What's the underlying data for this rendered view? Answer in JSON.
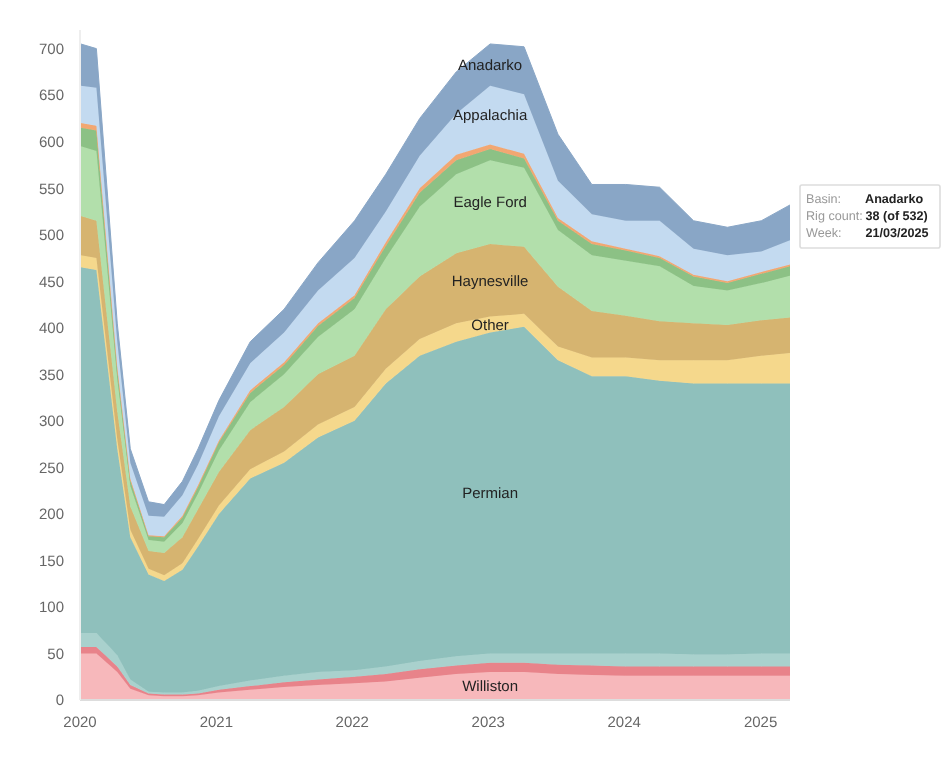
{
  "chart_data": {
    "type": "area",
    "stacked": true,
    "x": [
      "2020-01-03",
      "2020-02-14",
      "2020-04-10",
      "2020-05-15",
      "2020-07-03",
      "2020-08-14",
      "2020-10-02",
      "2020-11-13",
      "2021-01-08",
      "2021-04-02",
      "2021-07-02",
      "2021-10-01",
      "2022-01-07",
      "2022-04-01",
      "2022-07-01",
      "2022-10-07",
      "2023-01-06",
      "2023-04-07",
      "2023-07-07",
      "2023-10-06",
      "2024-01-05",
      "2024-04-05",
      "2024-07-05",
      "2024-10-04",
      "2025-01-03",
      "2025-03-21"
    ],
    "xlim": [
      "2020-01-01",
      "2025-03-21"
    ],
    "xticks": [
      "2020",
      "2021",
      "2022",
      "2023",
      "2024",
      "2025"
    ],
    "ylim": [
      0,
      720
    ],
    "yticks": [
      0,
      50,
      100,
      150,
      200,
      250,
      300,
      350,
      400,
      450,
      500,
      550,
      600,
      650,
      700
    ],
    "series": [
      {
        "name": "Williston",
        "color": "#f7b8bb",
        "values": [
          50,
          50,
          30,
          12,
          5,
          4,
          4,
          5,
          8,
          11,
          14,
          16,
          18,
          20,
          24,
          28,
          30,
          30,
          28,
          27,
          26,
          26,
          26,
          26,
          26,
          26
        ]
      },
      {
        "color": "#e8838a",
        "values": [
          7,
          7,
          6,
          4,
          2,
          2,
          2,
          2,
          3,
          4,
          5,
          6,
          7,
          8,
          9,
          9,
          10,
          10,
          10,
          10,
          10,
          10,
          10,
          10,
          10,
          10
        ]
      },
      {
        "color": "#a9d1cd",
        "values": [
          15,
          15,
          12,
          6,
          2,
          2,
          2,
          3,
          4,
          6,
          7,
          8,
          7,
          8,
          9,
          10,
          10,
          10,
          12,
          13,
          14,
          14,
          13,
          13,
          14,
          14
        ]
      },
      {
        "name": "Permian",
        "color": "#8fc0bc",
        "values": [
          393,
          390,
          222,
          153,
          126,
          120,
          132,
          155,
          185,
          217,
          229,
          252,
          268,
          304,
          328,
          338,
          345,
          351,
          315,
          298,
          298,
          293,
          291,
          291,
          290,
          290
        ]
      },
      {
        "name": "Other",
        "color": "#f5d88c",
        "values": [
          13,
          13,
          10,
          8,
          6,
          6,
          7,
          8,
          9,
          10,
          12,
          14,
          15,
          16,
          18,
          20,
          17,
          14,
          15,
          20,
          20,
          22,
          25,
          25,
          30,
          33
        ]
      },
      {
        "name": "Haynesville",
        "color": "#d6b470",
        "values": [
          42,
          40,
          30,
          25,
          19,
          24,
          28,
          32,
          36,
          42,
          48,
          54,
          55,
          64,
          67,
          75,
          78,
          72,
          64,
          50,
          45,
          42,
          40,
          38,
          38,
          38
        ]
      },
      {
        "name": "Eagle Ford",
        "color": "#b2dfab",
        "values": [
          75,
          75,
          35,
          22,
          12,
          12,
          15,
          17,
          23,
          30,
          35,
          40,
          50,
          55,
          75,
          85,
          90,
          85,
          61,
          60,
          59,
          59,
          40,
          37,
          40,
          45
        ]
      },
      {
        "color": "#8cc185",
        "values": [
          20,
          22,
          10,
          6,
          4,
          5,
          6,
          7,
          9,
          10,
          10,
          12,
          12,
          13,
          15,
          15,
          12,
          10,
          10,
          12,
          11,
          9,
          10,
          8,
          10,
          10
        ]
      },
      {
        "color": "#f2a772",
        "values": [
          5,
          5,
          3,
          2,
          1,
          1,
          2,
          2,
          2,
          3,
          3,
          3,
          3,
          4,
          5,
          6,
          5,
          5,
          3,
          3,
          2,
          2,
          2,
          2,
          2,
          2
        ]
      },
      {
        "name": "Appalachia",
        "color": "#c3daf0",
        "values": [
          40,
          41,
          27,
          17,
          21,
          21,
          22,
          22,
          26,
          29,
          32,
          35,
          40,
          33,
          35,
          44,
          63,
          64,
          40,
          29,
          30,
          38,
          28,
          28,
          22,
          26
        ]
      },
      {
        "name": "Anadarko",
        "color": "#89a6c6",
        "values": [
          45,
          42,
          20,
          15,
          15,
          13,
          15,
          17,
          17,
          23,
          25,
          30,
          40,
          40,
          40,
          45,
          45,
          51,
          50,
          32,
          39,
          36,
          30,
          30,
          33,
          38
        ]
      }
    ],
    "annotations": [
      "Basin: Anadarko",
      "Rig count: 38 (of 532)",
      "Week: 21/03/2025"
    ]
  }
}
